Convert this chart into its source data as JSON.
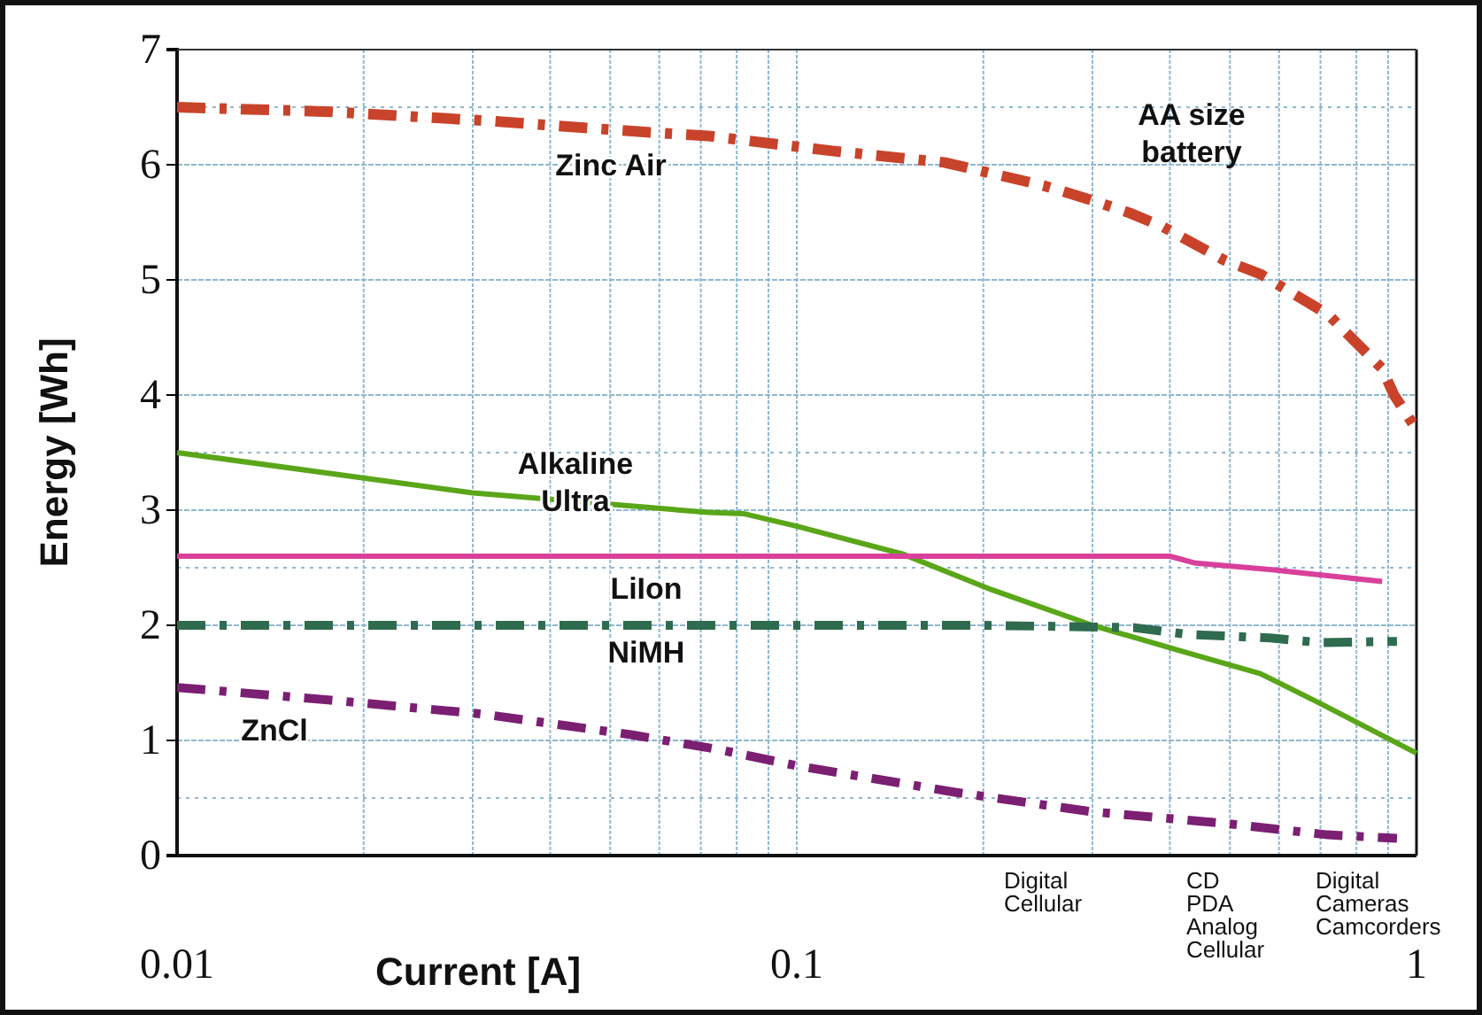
{
  "chart_data": {
    "type": "line",
    "xlabel": "Current [A]",
    "ylabel": "Energy [Wh]",
    "log": "x",
    "grid": true,
    "marker": "none",
    "xlim": [
      0.01,
      1
    ],
    "ylim": [
      0,
      7
    ],
    "xticks": [
      0.01,
      {
        "value": 0.02,
        "label": null
      },
      {
        "value": 0.03,
        "label": null
      },
      {
        "value": 0.04,
        "label": null
      },
      {
        "value": 0.05,
        "label": null
      },
      {
        "value": 0.06,
        "label": null
      },
      {
        "value": 0.07,
        "label": null
      },
      {
        "value": 0.08,
        "label": null
      },
      {
        "value": 0.09,
        "label": null
      },
      0.1,
      {
        "value": 0.2,
        "label": null
      },
      {
        "value": 0.3,
        "label": null
      },
      {
        "value": 0.4,
        "label": null
      },
      {
        "value": 0.5,
        "label": null
      },
      {
        "value": 0.6,
        "label": null
      },
      {
        "value": 0.7,
        "label": null
      },
      {
        "value": 0.8,
        "label": null
      },
      {
        "value": 0.9,
        "label": null
      },
      1
    ],
    "yticks": [
      0,
      {
        "value": 0.5,
        "label": null
      },
      1,
      2,
      {
        "value": 2.5,
        "label": null
      },
      3,
      {
        "value": 3.5,
        "label": null
      },
      4,
      5,
      6,
      {
        "value": 6.5,
        "label": null
      },
      7
    ],
    "series": [
      {
        "name": "Zinc Air",
        "color": "#c8432a",
        "line_style": "dashed",
        "x": [
          0.01,
          0.0177,
          0.032,
          0.058,
          0.072,
          0.114,
          0.173,
          0.25,
          0.3,
          0.345,
          0.39,
          0.49,
          0.56,
          0.72,
          0.88,
          0.92,
          1
        ],
        "values": [
          6.5,
          6.46,
          6.38,
          6.28,
          6.25,
          6.12,
          6.02,
          5.82,
          5.69,
          5.58,
          5.46,
          5.17,
          5.05,
          4.7,
          4.23,
          4.0,
          3.7
        ]
      },
      {
        "name": "Alkaline Ultra",
        "color": "#5aa619",
        "line_style": "solid",
        "x": [
          0.01,
          0.03,
          0.072,
          0.082,
          0.1,
          0.148,
          0.206,
          0.3,
          0.415,
          0.56,
          0.7,
          1
        ],
        "values": [
          3.5,
          3.15,
          2.98,
          2.97,
          2.86,
          2.62,
          2.31,
          2.0,
          1.78,
          1.58,
          1.32,
          0.89
        ]
      },
      {
        "name": "LiIon",
        "color": "#d9409b",
        "line_style": "solid",
        "x": [
          0.01,
          0.1,
          0.4,
          0.44,
          0.59,
          0.64,
          0.88
        ],
        "values": [
          2.6,
          2.6,
          2.6,
          2.54,
          2.48,
          2.46,
          2.38
        ]
      },
      {
        "name": "NiMH",
        "color": "#2f6b4f",
        "line_style": "dashed",
        "x": [
          0.01,
          0.2,
          0.35,
          0.43,
          0.58,
          0.7,
          0.93
        ],
        "values": [
          2.0,
          2.0,
          1.98,
          1.92,
          1.89,
          1.85,
          1.86
        ]
      },
      {
        "name": "ZnCl",
        "color": "#7b1f72",
        "line_style": "dashed",
        "x": [
          0.01,
          0.0177,
          0.031,
          0.054,
          0.075,
          0.1,
          0.18,
          0.3,
          0.49,
          0.72,
          0.93
        ],
        "values": [
          1.46,
          1.35,
          1.23,
          1.05,
          0.92,
          0.78,
          0.55,
          0.38,
          0.28,
          0.18,
          0.15
        ]
      }
    ],
    "annotations": [
      "AA size\nbattery",
      "Digital\nCellular",
      "CD\nPDA\nAnalog\nCellular",
      "Digital\nCameras\nCamcorders"
    ]
  }
}
